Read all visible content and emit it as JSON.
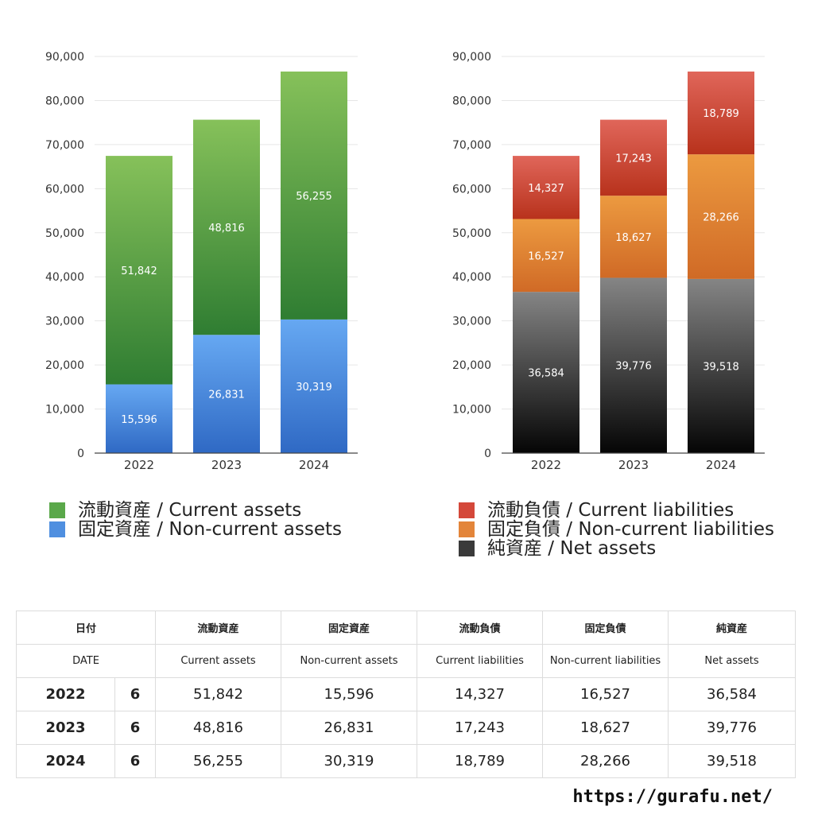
{
  "chart_data": [
    {
      "type": "bar",
      "stacked": true,
      "categories": [
        "2022",
        "2023",
        "2024"
      ],
      "ylim": [
        0,
        90000
      ],
      "yticks": [
        "0",
        "10,000",
        "20,000",
        "30,000",
        "40,000",
        "50,000",
        "60,000",
        "70,000",
        "80,000",
        "90,000"
      ],
      "grid": true,
      "series": [
        {
          "name": "固定資産 / Non-current assets",
          "values": [
            15596,
            26831,
            30319
          ],
          "labels": [
            "15,596",
            "26,831",
            "30,319"
          ],
          "color_top": "#66a8f2",
          "color_bottom": "#2f69c4"
        },
        {
          "name": "流動資産 / Current assets",
          "values": [
            51842,
            48816,
            56255
          ],
          "labels": [
            "51,842",
            "48,816",
            "56,255"
          ],
          "color_top": "#86c15a",
          "color_bottom": "#2f7d32"
        }
      ]
    },
    {
      "type": "bar",
      "stacked": true,
      "categories": [
        "2022",
        "2023",
        "2024"
      ],
      "ylim": [
        0,
        90000
      ],
      "yticks": [
        "0",
        "10,000",
        "20,000",
        "30,000",
        "40,000",
        "50,000",
        "60,000",
        "70,000",
        "80,000",
        "90,000"
      ],
      "grid": true,
      "series": [
        {
          "name": "純資産 / Net assets",
          "values": [
            36584,
            39776,
            39518
          ],
          "labels": [
            "36,584",
            "39,776",
            "39,518"
          ],
          "color_top": "#858585",
          "color_bottom": "#050505"
        },
        {
          "name": "固定負債 / Non-current liabilities",
          "values": [
            16527,
            18627,
            28266
          ],
          "labels": [
            "16,527",
            "18,627",
            "28,266"
          ],
          "color_top": "#ec9a40",
          "color_bottom": "#d06a26"
        },
        {
          "name": "流動負債 / Current liabilities",
          "values": [
            14327,
            17243,
            18789
          ],
          "labels": [
            "14,327",
            "17,243",
            "18,789"
          ],
          "color_top": "#e0665a",
          "color_bottom": "#b8321c"
        }
      ]
    }
  ],
  "legend_left": [
    {
      "label": "流動資産 / Current assets",
      "color": "#5aa84a"
    },
    {
      "label": "固定資産 / Non-current assets",
      "color": "#4f8fe0"
    }
  ],
  "legend_right": [
    {
      "label": "流動負債 / Current liabilities",
      "color": "#d4483a"
    },
    {
      "label": "固定負債 / Non-current liabilities",
      "color": "#e3853a"
    },
    {
      "label": "純資産 / Net assets",
      "color": "#3a3a3a"
    }
  ],
  "table": {
    "header_jp": [
      "日付",
      "流動資産",
      "固定資産",
      "流動負債",
      "固定負債",
      "純資産"
    ],
    "header_en": [
      "DATE",
      "Current assets",
      "Non-current assets",
      "Current liabilities",
      "Non-current liabilities",
      "Net assets"
    ],
    "rows": [
      {
        "year": "2022",
        "month": "6",
        "values": [
          "51,842",
          "15,596",
          "14,327",
          "16,527",
          "36,584"
        ]
      },
      {
        "year": "2023",
        "month": "6",
        "values": [
          "48,816",
          "26,831",
          "17,243",
          "18,627",
          "39,776"
        ]
      },
      {
        "year": "2024",
        "month": "6",
        "values": [
          "56,255",
          "30,319",
          "18,789",
          "28,266",
          "39,518"
        ]
      }
    ]
  },
  "source": "https://gurafu.net/"
}
